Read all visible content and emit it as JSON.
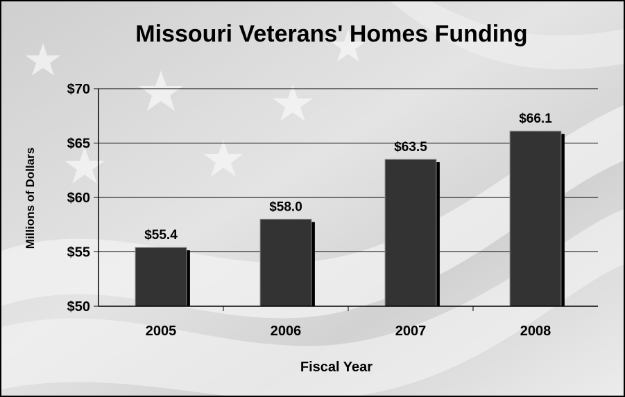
{
  "chart_data": {
    "type": "bar",
    "title": "Missouri Veterans' Homes Funding",
    "xlabel": "Fiscal Year",
    "ylabel": "Millions of Dollars",
    "categories": [
      "2005",
      "2006",
      "2007",
      "2008"
    ],
    "values": [
      55.4,
      58.0,
      63.5,
      66.1
    ],
    "data_labels": [
      "$55.4",
      "$58.0",
      "$63.5",
      "$66.1"
    ],
    "ylim": [
      50,
      70
    ],
    "yticks": [
      50,
      55,
      60,
      65,
      70
    ],
    "ytick_labels": [
      "$50",
      "$55",
      "$60",
      "$65",
      "$70"
    ],
    "grid": true,
    "legend": "none",
    "colors": {
      "bar": "#333333",
      "bar_shadow": "#000000",
      "grid": "#000000",
      "background": "#d9d9d9"
    }
  }
}
